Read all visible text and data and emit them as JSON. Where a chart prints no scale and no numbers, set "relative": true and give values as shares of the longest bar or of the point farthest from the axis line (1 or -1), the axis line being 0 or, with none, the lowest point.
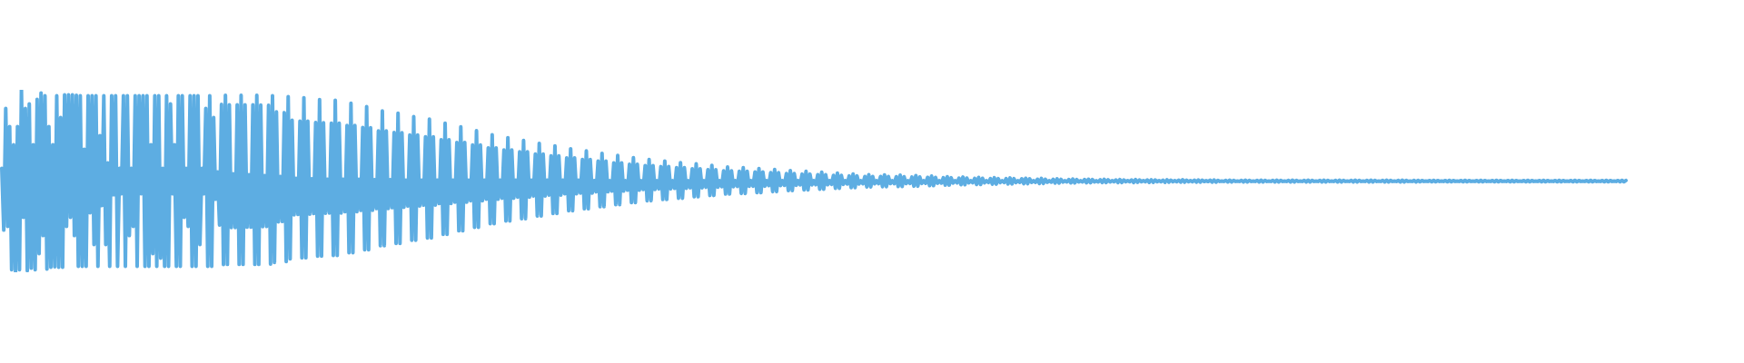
{
  "chart_data": {
    "type": "line",
    "relative": true,
    "tick_labels": false,
    "color": "#5dade2",
    "values": [
      0.57,
      0.231,
      0.898,
      0.251,
      0.799,
      0.014,
      0.699,
      0.0,
      0.799,
      0.014,
      1.0,
      0.301,
      0.898,
      0.009,
      0.923,
      0.022,
      0.699,
      0.014,
      0.948,
      0.102,
      0.983,
      0.201,
      0.968,
      0.017,
      0.799,
      0.027,
      0.699,
      0.03,
      0.968,
      0.027,
      0.848,
      0.027,
      0.973,
      0.251,
      0.973,
      0.301,
      0.973,
      0.201,
      0.97,
      0.032,
      0.968,
      0.032,
      0.674,
      0.032,
      0.968,
      0.326,
      0.968,
      0.152,
      0.968,
      0.032,
      0.749,
      0.366,
      0.968,
      0.152,
      0.6,
      0.032,
      0.968,
      0.425,
      0.968,
      0.032,
      0.57,
      0.43,
      0.968,
      0.032,
      0.968,
      0.201,
      0.57,
      0.251,
      0.968,
      0.032,
      0.968,
      0.43,
      0.968,
      0.032,
      0.968,
      0.032,
      0.699,
      0.102,
      0.968,
      0.032,
      0.968,
      0.077,
      0.57,
      0.032,
      0.968,
      0.032,
      0.923,
      0.43,
      0.699,
      0.032,
      0.968,
      0.032,
      0.968,
      0.301,
      0.57,
      0.251,
      0.968,
      0.032,
      0.968,
      0.032,
      0.968,
      0.152,
      0.57,
      0.43,
      0.898,
      0.032,
      0.968,
      0.032,
      0.848,
      0.4,
      0.55,
      0.259,
      0.92,
      0.042,
      0.97,
      0.043,
      0.918,
      0.245,
      0.54,
      0.245,
      0.918,
      0.043,
      0.97,
      0.043,
      0.918,
      0.247,
      0.535,
      0.247,
      0.918,
      0.043,
      0.97,
      0.043,
      0.917,
      0.25,
      0.53,
      0.251,
      0.915,
      0.045,
      0.968,
      0.054,
      0.879,
      0.276,
      0.525,
      0.278,
      0.875,
      0.059,
      0.963,
      0.073,
      0.833,
      0.315,
      0.515,
      0.317,
      0.828,
      0.079,
      0.957,
      0.079,
      0.828,
      0.319,
      0.512,
      0.322,
      0.821,
      0.088,
      0.947,
      0.088,
      0.82,
      0.324,
      0.51,
      0.325,
      0.817,
      0.092,
      0.943,
      0.092,
      0.817,
      0.325,
      0.51,
      0.332,
      0.805,
      0.107,
      0.926,
      0.107,
      0.805,
      0.332,
      0.51,
      0.339,
      0.793,
      0.123,
      0.908,
      0.123,
      0.792,
      0.34,
      0.507,
      0.349,
      0.775,
      0.146,
      0.884,
      0.146,
      0.775,
      0.349,
      0.507,
      0.354,
      0.766,
      0.158,
      0.872,
      0.158,
      0.765,
      0.356,
      0.505,
      0.363,
      0.752,
      0.175,
      0.853,
      0.175,
      0.752,
      0.363,
      0.505,
      0.368,
      0.742,
      0.188,
      0.839,
      0.188,
      0.742,
      0.368,
      0.505,
      0.377,
      0.726,
      0.208,
      0.817,
      0.208,
      0.726,
      0.377,
      0.505,
      0.384,
      0.712,
      0.227,
      0.797,
      0.227,
      0.712,
      0.384,
      0.505,
      0.392,
      0.698,
      0.246,
      0.776,
      0.246,
      0.698,
      0.392,
      0.505,
      0.4,
      0.682,
      0.266,
      0.754,
      0.266,
      0.682,
      0.4,
      0.505,
      0.406,
      0.67,
      0.281,
      0.738,
      0.281,
      0.67,
      0.406,
      0.505,
      0.412,
      0.66,
      0.294,
      0.723,
      0.294,
      0.66,
      0.412,
      0.505,
      0.418,
      0.648,
      0.309,
      0.707,
      0.309,
      0.648,
      0.418,
      0.505,
      0.423,
      0.638,
      0.322,
      0.693,
      0.322,
      0.638,
      0.423,
      0.505,
      0.43,
      0.627,
      0.337,
      0.677,
      0.337,
      0.627,
      0.43,
      0.505,
      0.434,
      0.618,
      0.348,
      0.665,
      0.348,
      0.618,
      0.434,
      0.502,
      0.441,
      0.609,
      0.36,
      0.652,
      0.36,
      0.609,
      0.441,
      0.502,
      0.445,
      0.6,
      0.371,
      0.64,
      0.371,
      0.6,
      0.445,
      0.502,
      0.45,
      0.592,
      0.382,
      0.628,
      0.382,
      0.592,
      0.45,
      0.502,
      0.454,
      0.585,
      0.392,
      0.618,
      0.392,
      0.585,
      0.454,
      0.502,
      0.457,
      0.579,
      0.399,
      0.61,
      0.399,
      0.579,
      0.457,
      0.502,
      0.46,
      0.573,
      0.406,
      0.601,
      0.406,
      0.573,
      0.46,
      0.502,
      0.463,
      0.567,
      0.414,
      0.594,
      0.414,
      0.567,
      0.463,
      0.502,
      0.466,
      0.562,
      0.421,
      0.586,
      0.421,
      0.562,
      0.466,
      0.502,
      0.469,
      0.556,
      0.429,
      0.577,
      0.429,
      0.556,
      0.469,
      0.502,
      0.471,
      0.553,
      0.432,
      0.573,
      0.432,
      0.553,
      0.471,
      0.502,
      0.472,
      0.55,
      0.436,
      0.569,
      0.436,
      0.55,
      0.472,
      0.502,
      0.475,
      0.546,
      0.442,
      0.563,
      0.442,
      0.546,
      0.475,
      0.502,
      0.477,
      0.541,
      0.448,
      0.557,
      0.448,
      0.541,
      0.477,
      0.502,
      0.479,
      0.538,
      0.451,
      0.553,
      0.451,
      0.538,
      0.479,
      0.502,
      0.48,
      0.535,
      0.455,
      0.549,
      0.455,
      0.535,
      0.48,
      0.502,
      0.482,
      0.531,
      0.46,
      0.543,
      0.46,
      0.531,
      0.482,
      0.502,
      0.484,
      0.528,
      0.464,
      0.539,
      0.464,
      0.528,
      0.484,
      0.502,
      0.485,
      0.525,
      0.468,
      0.535,
      0.468,
      0.525,
      0.485,
      0.502,
      0.486,
      0.525,
      0.469,
      0.534,
      0.469,
      0.525,
      0.486,
      0.502,
      0.486,
      0.524,
      0.47,
      0.532,
      0.47,
      0.524,
      0.486,
      0.502,
      0.487,
      0.522,
      0.472,
      0.53,
      0.472,
      0.522,
      0.487,
      0.502,
      0.488,
      0.52,
      0.475,
      0.527,
      0.475,
      0.52,
      0.488,
      0.502,
      0.489,
      0.518,
      0.478,
      0.524,
      0.478,
      0.518,
      0.489,
      0.502,
      0.49,
      0.516,
      0.48,
      0.522,
      0.48,
      0.516,
      0.49,
      0.502,
      0.491,
      0.515,
      0.481,
      0.52,
      0.481,
      0.515,
      0.491,
      0.502,
      0.492,
      0.513,
      0.483,
      0.518,
      0.483,
      0.513,
      0.492,
      0.502,
      0.492,
      0.513,
      0.484,
      0.517,
      0.484,
      0.513,
      0.492,
      0.502,
      0.493,
      0.512,
      0.486,
      0.515,
      0.486,
      0.512,
      0.493,
      0.502,
      0.493,
      0.51,
      0.487,
      0.514,
      0.487,
      0.51,
      0.493,
      0.502,
      0.494,
      0.509,
      0.489,
      0.512,
      0.489,
      0.509,
      0.494,
      0.502,
      0.495,
      0.508,
      0.49,
      0.511,
      0.49,
      0.508,
      0.495,
      0.502,
      0.495,
      0.508,
      0.491,
      0.51,
      0.491,
      0.508,
      0.495,
      0.502,
      0.495,
      0.507,
      0.492,
      0.509,
      0.492,
      0.507,
      0.495,
      0.502,
      0.496,
      0.506,
      0.492,
      0.508,
      0.492,
      0.506,
      0.496,
      0.502,
      0.496,
      0.506,
      0.492,
      0.508,
      0.493,
      0.506,
      0.496,
      0.502,
      0.496,
      0.506,
      0.493,
      0.507,
      0.493,
      0.506,
      0.496,
      0.502,
      0.496,
      0.505,
      0.493,
      0.507,
      0.494,
      0.505,
      0.496,
      0.502,
      0.496,
      0.505,
      0.494,
      0.507,
      0.494,
      0.505,
      0.496,
      0.502,
      0.496,
      0.505,
      0.494,
      0.506,
      0.494,
      0.505,
      0.497,
      0.502,
      0.497,
      0.505,
      0.494,
      0.506,
      0.494,
      0.504,
      0.498,
      0.5,
      0.498,
      0.504,
      0.495,
      0.505,
      0.495,
      0.504,
      0.498,
      0.5,
      0.498,
      0.504,
      0.495,
      0.505,
      0.495,
      0.504,
      0.498,
      0.5,
      0.498,
      0.504,
      0.495,
      0.505,
      0.495,
      0.504,
      0.498,
      0.5,
      0.498,
      0.504,
      0.495,
      0.505,
      0.495,
      0.504,
      0.498,
      0.5,
      0.498,
      0.504,
      0.495,
      0.505,
      0.495,
      0.504,
      0.498,
      0.5,
      0.498,
      0.504,
      0.495,
      0.505,
      0.495,
      0.504,
      0.498,
      0.5,
      0.498,
      0.504,
      0.495,
      0.505,
      0.495,
      0.504,
      0.498,
      0.5,
      0.498,
      0.504,
      0.495,
      0.505,
      0.495,
      0.504,
      0.498,
      0.5,
      0.498,
      0.504,
      0.495,
      0.505,
      0.495,
      0.504,
      0.498,
      0.5,
      0.498,
      0.504,
      0.495,
      0.505,
      0.495,
      0.504,
      0.498,
      0.5,
      0.498,
      0.504,
      0.495,
      0.505,
      0.495,
      0.504,
      0.498,
      0.5,
      0.498,
      0.504,
      0.495,
      0.505,
      0.495,
      0.504,
      0.498,
      0.5,
      0.498,
      0.504,
      0.495,
      0.504,
      0.496,
      0.503,
      0.498,
      0.5,
      0.498,
      0.503,
      0.496,
      0.504,
      0.496,
      0.503,
      0.498,
      0.5,
      0.498,
      0.503,
      0.496,
      0.504,
      0.496,
      0.503,
      0.498,
      0.5,
      0.498,
      0.503,
      0.496,
      0.504,
      0.496,
      0.503,
      0.498,
      0.5,
      0.498,
      0.503,
      0.496,
      0.504,
      0.496,
      0.503,
      0.498,
      0.5,
      0.498,
      0.503,
      0.496,
      0.504,
      0.496,
      0.503,
      0.498,
      0.5,
      0.498,
      0.503,
      0.496,
      0.504,
      0.496,
      0.503,
      0.498,
      0.5,
      0.498,
      0.503,
      0.496,
      0.504,
      0.496,
      0.503,
      0.498,
      0.5,
      0.498,
      0.503,
      0.496,
      0.504,
      0.496,
      0.503,
      0.498,
      0.5,
      0.498,
      0.503,
      0.496,
      0.504,
      0.496,
      0.503,
      0.498,
      0.5,
      0.498,
      0.503,
      0.496,
      0.504,
      0.496,
      0.503,
      0.498,
      0.5,
      0.498,
      0.503,
      0.496,
      0.504,
      0.496,
      0.503,
      0.498,
      0.5,
      0.498,
      0.503,
      0.496,
      0.504,
      0.496,
      0.503,
      0.498,
      0.5,
      0.498,
      0.503,
      0.496,
      0.504,
      0.496,
      0.503
    ],
    "categories": [
      null,
      null,
      null,
      null,
      null,
      null,
      null,
      null,
      null,
      null,
      null,
      null,
      null,
      null,
      null,
      null,
      null,
      null,
      null,
      null,
      null,
      null,
      null,
      null,
      null,
      null,
      null,
      null,
      null,
      null,
      null,
      null,
      null,
      null,
      null,
      null,
      null,
      null,
      null,
      null,
      null,
      null,
      null,
      null,
      null,
      null,
      null,
      null,
      null,
      null,
      null,
      null,
      null,
      null,
      null,
      null,
      null,
      null,
      null,
      null,
      null,
      null,
      null,
      null,
      null,
      null,
      null,
      null,
      null,
      null,
      null,
      null,
      null,
      null,
      null,
      null,
      null,
      null,
      null,
      null,
      null,
      null,
      null,
      null,
      null,
      null,
      null,
      null,
      null,
      null,
      null,
      null,
      null,
      null,
      null,
      null,
      null,
      null,
      null,
      null,
      null,
      null,
      null,
      null,
      null,
      null,
      null,
      null,
      null,
      null,
      null,
      null,
      null,
      null,
      null,
      null,
      null,
      null,
      null,
      null,
      null,
      null,
      null,
      null,
      null,
      null,
      null,
      null,
      null,
      null,
      null,
      null,
      null,
      null,
      null,
      null,
      null,
      null,
      null,
      null,
      null,
      null,
      null,
      null,
      null,
      null,
      null,
      null,
      null,
      null,
      null,
      null,
      null,
      null,
      null,
      null,
      null,
      null,
      null,
      null,
      null,
      null,
      null,
      null,
      null,
      null,
      null,
      null,
      null,
      null,
      null,
      null,
      null,
      null,
      null,
      null,
      null,
      null,
      null,
      null,
      null,
      null,
      null,
      null,
      null,
      null,
      null,
      null,
      null,
      null,
      null,
      null,
      null,
      null,
      null,
      null,
      null,
      null,
      null,
      null,
      null,
      null,
      null,
      null,
      null,
      null,
      null,
      null,
      null,
      null,
      null,
      null,
      null,
      null,
      null,
      null,
      null,
      null,
      null,
      null,
      null,
      null,
      null,
      null,
      null,
      null,
      null,
      null,
      null,
      null,
      null,
      null,
      null,
      null,
      null,
      null,
      null,
      null,
      null,
      null,
      null,
      null,
      null,
      null,
      null,
      null,
      null,
      null,
      null,
      null,
      null,
      null,
      null,
      null,
      null,
      null,
      null,
      null,
      null,
      null,
      null,
      null,
      null,
      null,
      null,
      null,
      null,
      null,
      null,
      null,
      null,
      null,
      null,
      null,
      null,
      null,
      null,
      null,
      null,
      null,
      null,
      null,
      null,
      null,
      null,
      null,
      null,
      null,
      null,
      null,
      null,
      null,
      null,
      null,
      null,
      null,
      null,
      null,
      null,
      null,
      null,
      null,
      null,
      null,
      null,
      null,
      null,
      null,
      null,
      null,
      null,
      null,
      null,
      null,
      null,
      null,
      null,
      null,
      null,
      null,
      null,
      null,
      null,
      null,
      null,
      null,
      null,
      null,
      null,
      null,
      null,
      null,
      null,
      null,
      null,
      null,
      null,
      null,
      null,
      null,
      null,
      null,
      null,
      null,
      null,
      null,
      null,
      null,
      null,
      null,
      null,
      null,
      null,
      null,
      null,
      null,
      null,
      null,
      null,
      null,
      null,
      null,
      null,
      null,
      null,
      null,
      null,
      null,
      null,
      null,
      null,
      null,
      null,
      null,
      null,
      null,
      null,
      null,
      null,
      null,
      null,
      null,
      null,
      null,
      null,
      null,
      null,
      null,
      null,
      null,
      null,
      null,
      null,
      null,
      null,
      null,
      null,
      null,
      null,
      null,
      null,
      null,
      null,
      null,
      null,
      null,
      null,
      null,
      null,
      null,
      null,
      null,
      null,
      null,
      null,
      null,
      null,
      null,
      null,
      null,
      null,
      null,
      null,
      null,
      null,
      null,
      null,
      null,
      null,
      null,
      null,
      null,
      null,
      null,
      null,
      null,
      null,
      null,
      null,
      null,
      null,
      null,
      null,
      null,
      null,
      null,
      null,
      null,
      null,
      null,
      null,
      null,
      null,
      null,
      null,
      null,
      null,
      null,
      null,
      null,
      null,
      null,
      null,
      null,
      null,
      null,
      null,
      null,
      null,
      null,
      null,
      null,
      null,
      null,
      null,
      null,
      null,
      null,
      null,
      null,
      null,
      null,
      null,
      null,
      null,
      null,
      null,
      null,
      null,
      null,
      null,
      null,
      null,
      null,
      null,
      null,
      null,
      null,
      null,
      null,
      null,
      null,
      null,
      null,
      null,
      null,
      null,
      null,
      null,
      null,
      null,
      null,
      null,
      null,
      null,
      null,
      null,
      null,
      null,
      null,
      null,
      null,
      null,
      null,
      null,
      null,
      null,
      null,
      null,
      null,
      null,
      null,
      null,
      null,
      null,
      null,
      null,
      null,
      null,
      null,
      null,
      null,
      null,
      null,
      null,
      null,
      null,
      null,
      null,
      null,
      null,
      null,
      null,
      null,
      null,
      null,
      null,
      null,
      null,
      null,
      null,
      null,
      null,
      null,
      null,
      null,
      null,
      null,
      null,
      null,
      null,
      null,
      null,
      null,
      null,
      null,
      null,
      null,
      null,
      null,
      null,
      null,
      null,
      null,
      null,
      null,
      null,
      null,
      null,
      null,
      null,
      null,
      null,
      null,
      null,
      null,
      null,
      null,
      null,
      null,
      null,
      null,
      null,
      null,
      null,
      null,
      null,
      null,
      null,
      null,
      null,
      null,
      null,
      null,
      null,
      null,
      null,
      null,
      null,
      null,
      null,
      null,
      null,
      null,
      null,
      null,
      null,
      null,
      null,
      null,
      null,
      null,
      null,
      null,
      null,
      null,
      null,
      null,
      null,
      null,
      null,
      null,
      null,
      null,
      null,
      null,
      null,
      null,
      null,
      null,
      null,
      null,
      null,
      null,
      null,
      null,
      null,
      null,
      null,
      null,
      null,
      null,
      null,
      null,
      null,
      null,
      null,
      null,
      null,
      null,
      null,
      null,
      null,
      null,
      null,
      null,
      null,
      null,
      null,
      null,
      null,
      null,
      null,
      null,
      null,
      null,
      null,
      null,
      null,
      null,
      null,
      null,
      null,
      null,
      null,
      null,
      null,
      null,
      null,
      null,
      null,
      null,
      null,
      null,
      null,
      null,
      null,
      null,
      null,
      null,
      null,
      null,
      null,
      null,
      null,
      null,
      null,
      null,
      null,
      null,
      null,
      null,
      null,
      null,
      null,
      null,
      null,
      null,
      null,
      null,
      null,
      null,
      null,
      null,
      null,
      null,
      null,
      null,
      null,
      null,
      null,
      null,
      null,
      null,
      null,
      null,
      null,
      null,
      null,
      null,
      null,
      null,
      null,
      null,
      null,
      null,
      null,
      null,
      null,
      null,
      null,
      null,
      null,
      null,
      null,
      null,
      null,
      null,
      null,
      null,
      null,
      null,
      null,
      null,
      null,
      null,
      null,
      null,
      null,
      null,
      null,
      null,
      null,
      null,
      null,
      null,
      null,
      null,
      null,
      null,
      null,
      null,
      null,
      null,
      null,
      null,
      null,
      null,
      null,
      null,
      null,
      null,
      null,
      null,
      null,
      null,
      null,
      null,
      null,
      null,
      null,
      null,
      null,
      null,
      null,
      null,
      null,
      null,
      null,
      null,
      null,
      null,
      null,
      null,
      null,
      null,
      null,
      null,
      null
    ]
  }
}
